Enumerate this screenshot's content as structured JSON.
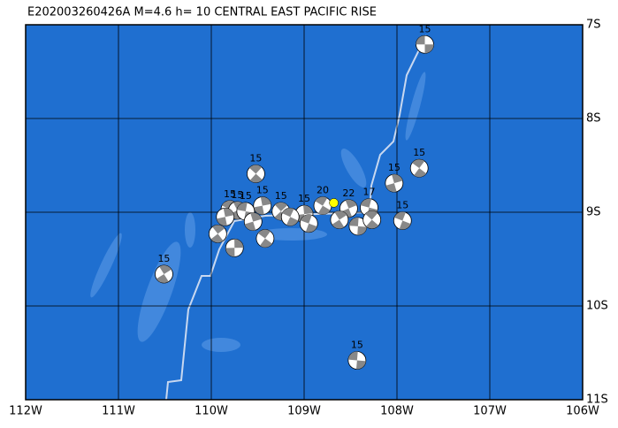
{
  "map": {
    "title": "E202003260426A M=4.6 h= 10 CENTRAL EAST PACIFIC RISE",
    "xlim": [
      -112,
      -106
    ],
    "ylim": [
      -11,
      -7
    ],
    "xticks": [
      {
        "value": -112,
        "label": "112W"
      },
      {
        "value": -111,
        "label": "111W"
      },
      {
        "value": -110,
        "label": "110W"
      },
      {
        "value": -109,
        "label": "109W"
      },
      {
        "value": -108,
        "label": "108W"
      },
      {
        "value": -107,
        "label": "107W"
      },
      {
        "value": -106,
        "label": "106W"
      }
    ],
    "yticks": [
      {
        "value": -7,
        "label": "7S"
      },
      {
        "value": -8,
        "label": "8S"
      },
      {
        "value": -9,
        "label": "9S"
      },
      {
        "value": -10,
        "label": "10S"
      },
      {
        "value": -11,
        "label": "11S"
      }
    ],
    "events": [
      {
        "lon": -107.7,
        "lat": -7.21,
        "label": "15"
      },
      {
        "lon": -107.76,
        "lat": -8.53,
        "label": "15"
      },
      {
        "lon": -108.03,
        "lat": -8.69,
        "label": "15"
      },
      {
        "lon": -107.94,
        "lat": -9.09,
        "label": "15"
      },
      {
        "lon": -110.51,
        "lat": -9.66,
        "label": "15"
      },
      {
        "lon": -108.43,
        "lat": -10.58,
        "label": "15"
      },
      {
        "lon": -109.52,
        "lat": -8.59,
        "label": "15"
      },
      {
        "lon": -109.45,
        "lat": -8.93,
        "label": "15"
      },
      {
        "lon": -109.8,
        "lat": -8.97,
        "label": "15"
      },
      {
        "lon": -109.72,
        "lat": -8.98,
        "label": "15"
      },
      {
        "lon": -109.63,
        "lat": -8.99,
        "label": "15"
      },
      {
        "lon": -109.25,
        "lat": -8.99,
        "label": "15"
      },
      {
        "lon": -109.0,
        "lat": -9.02,
        "label": "15"
      },
      {
        "lon": -108.8,
        "lat": -8.93,
        "label": "20"
      },
      {
        "lon": -108.52,
        "lat": -8.96,
        "label": "22"
      },
      {
        "lon": -108.3,
        "lat": -8.95,
        "label": "17"
      },
      {
        "lon": -109.93,
        "lat": -9.23
      },
      {
        "lon": -109.75,
        "lat": -9.38
      },
      {
        "lon": -109.42,
        "lat": -9.28
      },
      {
        "lon": -109.55,
        "lat": -9.1
      },
      {
        "lon": -108.95,
        "lat": -9.12
      },
      {
        "lon": -108.62,
        "lat": -9.08
      },
      {
        "lon": -108.42,
        "lat": -9.15
      },
      {
        "lon": -108.27,
        "lat": -9.08
      },
      {
        "lon": -109.85,
        "lat": -9.05
      },
      {
        "lon": -109.15,
        "lat": -9.05
      }
    ],
    "epicenter": {
      "lon": -108.68,
      "lat": -8.9
    }
  }
}
